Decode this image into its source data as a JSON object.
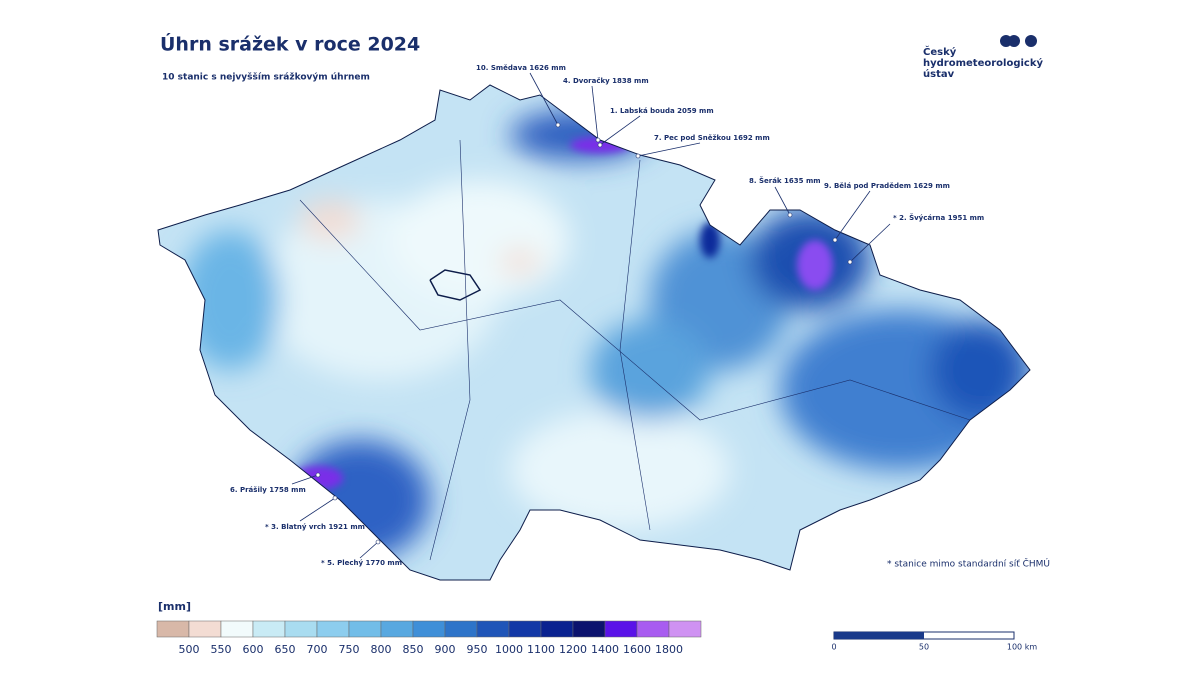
{
  "title": "Úhrn srážek v roce 2024",
  "subtitle": "10 stanic s nejvyšším srážkovým úhrnem",
  "logo": [
    "Český",
    "hydrometeorologický",
    "ústav"
  ],
  "stations": [
    "10. Smědava 1626 mm",
    "4. Dvoračky 1838 mm",
    "1. Labská bouda 2059 mm",
    "7. Pec pod Sněžkou 1692 mm",
    "8. Šerák 1635 mm",
    "9. Bělá pod Pradědem 1629 mm",
    "* 2. Švýcárna 1951 mm",
    "6. Prášily 1758 mm",
    "* 3. Blatný vrch 1921 mm",
    "* 5. Plechý 1770 mm"
  ],
  "legend": {
    "unit": "[mm]",
    "labels": [
      500,
      550,
      600,
      650,
      700,
      750,
      800,
      850,
      900,
      950,
      1000,
      1100,
      1200,
      1400,
      1600,
      1800
    ],
    "colors": [
      "#d8b8a8",
      "#f3dcd3",
      "#f2fbfc",
      "#c9ebf5",
      "#a9dcf0",
      "#8dcdee",
      "#72bde8",
      "#58a8e0",
      "#3f8fd8",
      "#2e74c9",
      "#1f55b8",
      "#1238a6",
      "#0a2290",
      "#0c136e",
      "#5a12e8",
      "#a85cf0",
      "#cf92f2"
    ]
  },
  "scale": {
    "labels": [
      0,
      50,
      "100 km"
    ]
  },
  "note": "* stanice mimo standardní síť ČHMÚ"
}
